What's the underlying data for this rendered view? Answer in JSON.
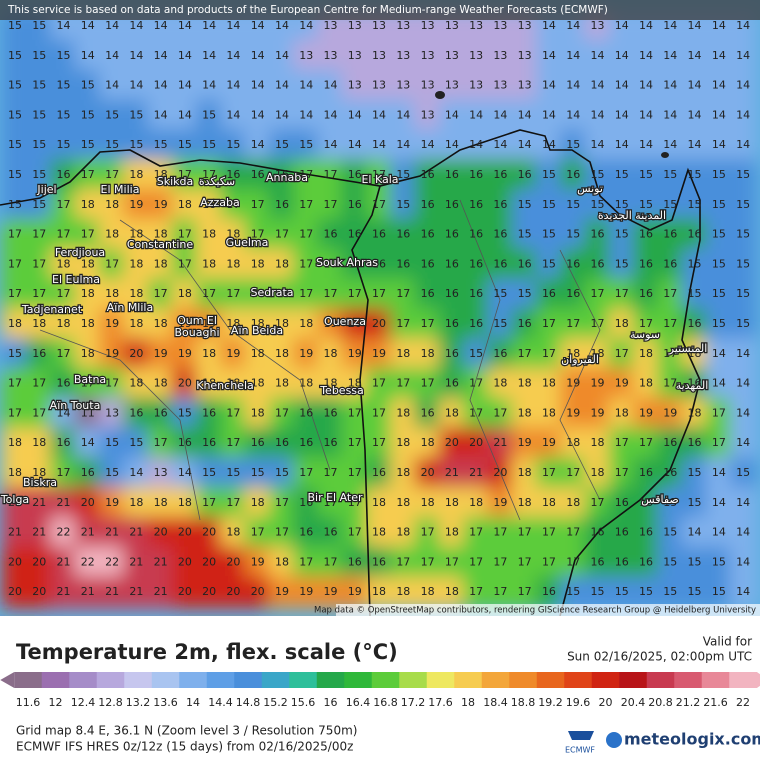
{
  "header": {
    "notice": "This service is based on data and products of the European Centre for Medium-range Weather Forecasts (ECMWF)"
  },
  "map": {
    "rows": [
      [
        15,
        15,
        14,
        14,
        14,
        14,
        14,
        14,
        14,
        14,
        14,
        14,
        14,
        13,
        13,
        13,
        13,
        13,
        13,
        13,
        13,
        13,
        14,
        14,
        13,
        14,
        14,
        14,
        14,
        14,
        14
      ],
      [
        15,
        15,
        15,
        14,
        14,
        14,
        14,
        14,
        14,
        14,
        14,
        14,
        13,
        13,
        13,
        13,
        13,
        13,
        13,
        13,
        13,
        13,
        14,
        14,
        14,
        14,
        14,
        14,
        14,
        14,
        14
      ],
      [
        15,
        15,
        15,
        15,
        14,
        14,
        14,
        14,
        14,
        14,
        14,
        14,
        14,
        14,
        13,
        13,
        13,
        13,
        13,
        13,
        13,
        13,
        14,
        14,
        14,
        14,
        14,
        14,
        14,
        14,
        14
      ],
      [
        15,
        15,
        15,
        15,
        15,
        15,
        14,
        14,
        15,
        14,
        14,
        14,
        14,
        14,
        14,
        14,
        14,
        13,
        14,
        14,
        14,
        14,
        14,
        14,
        14,
        14,
        14,
        14,
        14,
        14,
        14
      ],
      [
        15,
        15,
        15,
        15,
        15,
        15,
        15,
        15,
        15,
        15,
        14,
        15,
        15,
        14,
        14,
        14,
        14,
        14,
        14,
        14,
        14,
        14,
        14,
        15,
        14,
        14,
        14,
        14,
        14,
        14,
        14
      ],
      [
        15,
        15,
        16,
        17,
        17,
        18,
        18,
        17,
        17,
        16,
        16,
        16,
        17,
        17,
        16,
        17,
        15,
        16,
        16,
        16,
        16,
        16,
        15,
        16,
        15,
        15,
        15,
        15,
        15,
        15,
        15
      ],
      [
        15,
        15,
        17,
        18,
        18,
        19,
        19,
        18,
        18,
        17,
        17,
        16,
        17,
        17,
        16,
        17,
        15,
        16,
        16,
        16,
        16,
        15,
        15,
        15,
        15,
        15,
        15,
        15,
        15,
        15,
        15
      ],
      [
        17,
        17,
        17,
        17,
        18,
        18,
        18,
        17,
        18,
        18,
        17,
        17,
        17,
        16,
        16,
        16,
        16,
        16,
        16,
        16,
        16,
        15,
        15,
        15,
        16,
        15,
        16,
        16,
        16,
        15,
        15
      ],
      [
        17,
        17,
        18,
        18,
        17,
        18,
        18,
        17,
        18,
        18,
        18,
        18,
        17,
        17,
        16,
        16,
        16,
        16,
        16,
        16,
        16,
        16,
        15,
        16,
        16,
        15,
        16,
        16,
        15,
        15,
        15
      ],
      [
        17,
        17,
        17,
        18,
        18,
        18,
        17,
        18,
        17,
        17,
        17,
        17,
        17,
        17,
        17,
        17,
        17,
        16,
        16,
        16,
        15,
        15,
        16,
        16,
        17,
        17,
        16,
        17,
        15,
        15,
        15
      ],
      [
        18,
        18,
        18,
        18,
        19,
        18,
        18,
        19,
        19,
        18,
        18,
        18,
        18,
        19,
        20,
        20,
        17,
        17,
        16,
        16,
        15,
        16,
        17,
        17,
        17,
        18,
        17,
        17,
        16,
        15,
        15
      ],
      [
        15,
        16,
        17,
        18,
        19,
        20,
        19,
        19,
        18,
        19,
        18,
        18,
        19,
        18,
        19,
        19,
        18,
        18,
        16,
        15,
        16,
        17,
        17,
        18,
        18,
        17,
        18,
        17,
        18,
        14,
        14
      ],
      [
        17,
        17,
        16,
        17,
        17,
        18,
        18,
        20,
        18,
        18,
        18,
        18,
        18,
        18,
        18,
        17,
        17,
        17,
        16,
        17,
        18,
        18,
        18,
        19,
        19,
        19,
        18,
        17,
        16,
        14,
        14
      ],
      [
        17,
        17,
        14,
        11,
        13,
        16,
        16,
        15,
        16,
        17,
        18,
        17,
        16,
        16,
        17,
        17,
        18,
        16,
        18,
        17,
        17,
        18,
        18,
        19,
        19,
        18,
        19,
        19,
        18,
        17,
        14
      ],
      [
        18,
        18,
        16,
        14,
        15,
        15,
        17,
        16,
        16,
        17,
        16,
        16,
        16,
        16,
        17,
        17,
        18,
        18,
        20,
        20,
        21,
        19,
        19,
        18,
        18,
        17,
        17,
        16,
        16,
        17,
        14
      ],
      [
        18,
        18,
        17,
        16,
        15,
        14,
        13,
        14,
        15,
        15,
        15,
        15,
        17,
        17,
        17,
        16,
        18,
        20,
        21,
        21,
        20,
        18,
        17,
        17,
        18,
        17,
        16,
        16,
        15,
        14,
        15
      ],
      [
        21,
        21,
        21,
        20,
        19,
        18,
        18,
        18,
        17,
        17,
        18,
        17,
        16,
        17,
        17,
        18,
        18,
        18,
        18,
        18,
        19,
        18,
        18,
        18,
        17,
        16,
        16,
        15,
        15,
        14,
        14
      ],
      [
        21,
        21,
        22,
        21,
        21,
        21,
        20,
        20,
        20,
        18,
        17,
        17,
        16,
        16,
        17,
        18,
        18,
        17,
        18,
        17,
        17,
        17,
        17,
        17,
        16,
        16,
        16,
        15,
        14,
        14,
        14
      ],
      [
        20,
        20,
        21,
        22,
        22,
        21,
        21,
        20,
        20,
        20,
        19,
        18,
        17,
        17,
        16,
        16,
        17,
        17,
        17,
        17,
        17,
        17,
        17,
        17,
        16,
        16,
        16,
        15,
        15,
        15,
        14
      ],
      [
        20,
        20,
        21,
        21,
        21,
        21,
        21,
        20,
        20,
        20,
        20,
        19,
        19,
        19,
        19,
        18,
        18,
        18,
        18,
        17,
        17,
        17,
        16,
        15,
        15,
        15,
        15,
        15,
        15,
        15,
        14
      ]
    ],
    "cities": [
      "Jijel",
      "El Milia",
      "Skikda",
      "سكيكدة",
      "Annaba",
      "El Kala",
      "Azzaba",
      "Constantine",
      "Guelma",
      "Ferdjioua",
      "El Eulma",
      "Tadjenanet",
      "Aïn Mlila",
      "Souk Ahras",
      "Sedrata",
      "Oum El",
      "Bouaghi",
      "Aïn Beida",
      "Ouenza",
      "Batna",
      "Aïn Touta",
      "Khenchela",
      "Tebessa",
      "Biskra",
      "Tolga",
      "Bir El Ater",
      "تونس",
      "المدينة الجديدة",
      "القيروان",
      "سوسة",
      "المنستير",
      "المهدية",
      "صفاقس"
    ],
    "attribution": "Map data © OpenStreetMap contributors, rendering GIScience Research Group @ Heidelberg University"
  },
  "legend": {
    "title": "Temperature 2m, flex. scale (°C)",
    "valid_label": "Valid for",
    "valid_time": "Sun 02/16/2025, 02:00pm UTC",
    "ticks": [
      11.6,
      12,
      12.4,
      12.8,
      13.2,
      13.6,
      14,
      14.4,
      14.8,
      15.2,
      15.6,
      16,
      16.4,
      16.8,
      17.2,
      17.6,
      18,
      18.4,
      18.8,
      19.2,
      19.6,
      20,
      20.4,
      20.8,
      21.2,
      21.6,
      22
    ],
    "colors": [
      "#8a6d8a",
      "#9b6fb0",
      "#a58cc8",
      "#b7a8dd",
      "#c6c6ee",
      "#a9c4f0",
      "#7fb0ec",
      "#5f9fe6",
      "#4a8fdb",
      "#3aa6c8",
      "#2ebf9a",
      "#25a84a",
      "#2fb83a",
      "#5ccc3a",
      "#a8dc4a",
      "#eee860",
      "#f6cc50",
      "#f3a63a",
      "#ef8a2a",
      "#e8661e",
      "#e04418",
      "#d02412",
      "#b81418",
      "#c83a50",
      "#d85a70",
      "#e88898",
      "#f2b4c0"
    ]
  },
  "footer": {
    "grid_info": "Grid map 8.4 E, 36.1 N (Zoom level 3 / Resolution 750m)",
    "model_info": "ECMWF IFS HRES 0z/12z (15 days) from 02/16/2025/00z",
    "ecmwf": "ECMWF",
    "brand": "meteologix.com"
  }
}
